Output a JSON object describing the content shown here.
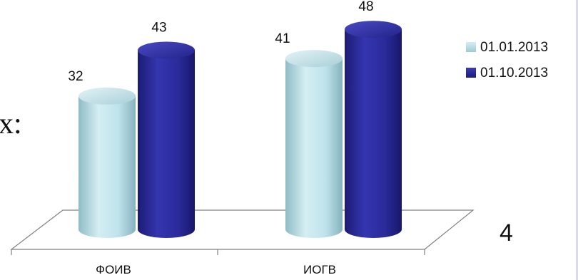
{
  "slide": {
    "side_text": "х:",
    "page_number": "4"
  },
  "colors": {
    "series_1": "#bfe3ec",
    "series_2": "#2b2b9c",
    "axis": "#808080"
  },
  "chart_data": {
    "type": "bar",
    "title": "",
    "xlabel": "",
    "ylabel": "",
    "categories": [
      "ФОИВ",
      "ИОГВ"
    ],
    "series": [
      {
        "name": "01.01.2013",
        "values": [
          32,
          41
        ]
      },
      {
        "name": "01.10.2013",
        "values": [
          43,
          48
        ]
      }
    ],
    "ylim": [
      0,
      50
    ],
    "grid": false,
    "legend": "right",
    "style": "3d-cylinder"
  }
}
